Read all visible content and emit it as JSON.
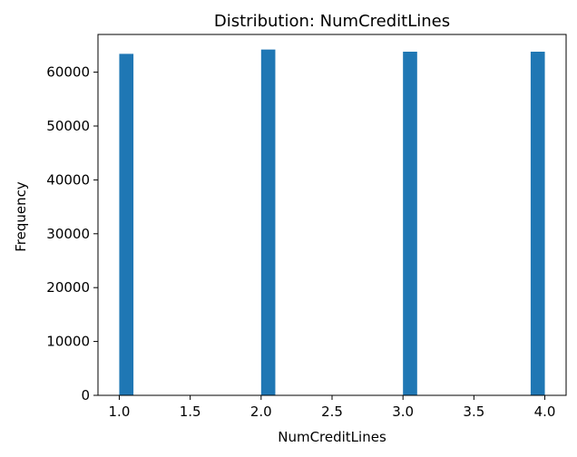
{
  "chart_data": {
    "type": "bar",
    "title": "Distribution: NumCreditLines",
    "xlabel": "NumCreditLines",
    "ylabel": "Frequency",
    "xlim": [
      0.85,
      4.15
    ],
    "ylim": [
      0,
      67000
    ],
    "bin_width": 0.1,
    "bins": [
      {
        "x_start": 1.0,
        "x_end": 1.1,
        "value": 63400
      },
      {
        "x_start": 2.0,
        "x_end": 2.1,
        "value": 64200
      },
      {
        "x_start": 3.0,
        "x_end": 3.1,
        "value": 63800
      },
      {
        "x_start": 3.9,
        "x_end": 4.0,
        "value": 63800
      }
    ],
    "xticks": [
      1.0,
      1.5,
      2.0,
      2.5,
      3.0,
      3.5,
      4.0
    ],
    "xtick_labels": [
      "1.0",
      "1.5",
      "2.0",
      "2.5",
      "3.0",
      "3.5",
      "4.0"
    ],
    "yticks": [
      0,
      10000,
      20000,
      30000,
      40000,
      50000,
      60000
    ],
    "ytick_labels": [
      "0",
      "10000",
      "20000",
      "30000",
      "40000",
      "50000",
      "60000"
    ],
    "bar_color": "#1f77b4",
    "grid": false,
    "legend": false
  }
}
